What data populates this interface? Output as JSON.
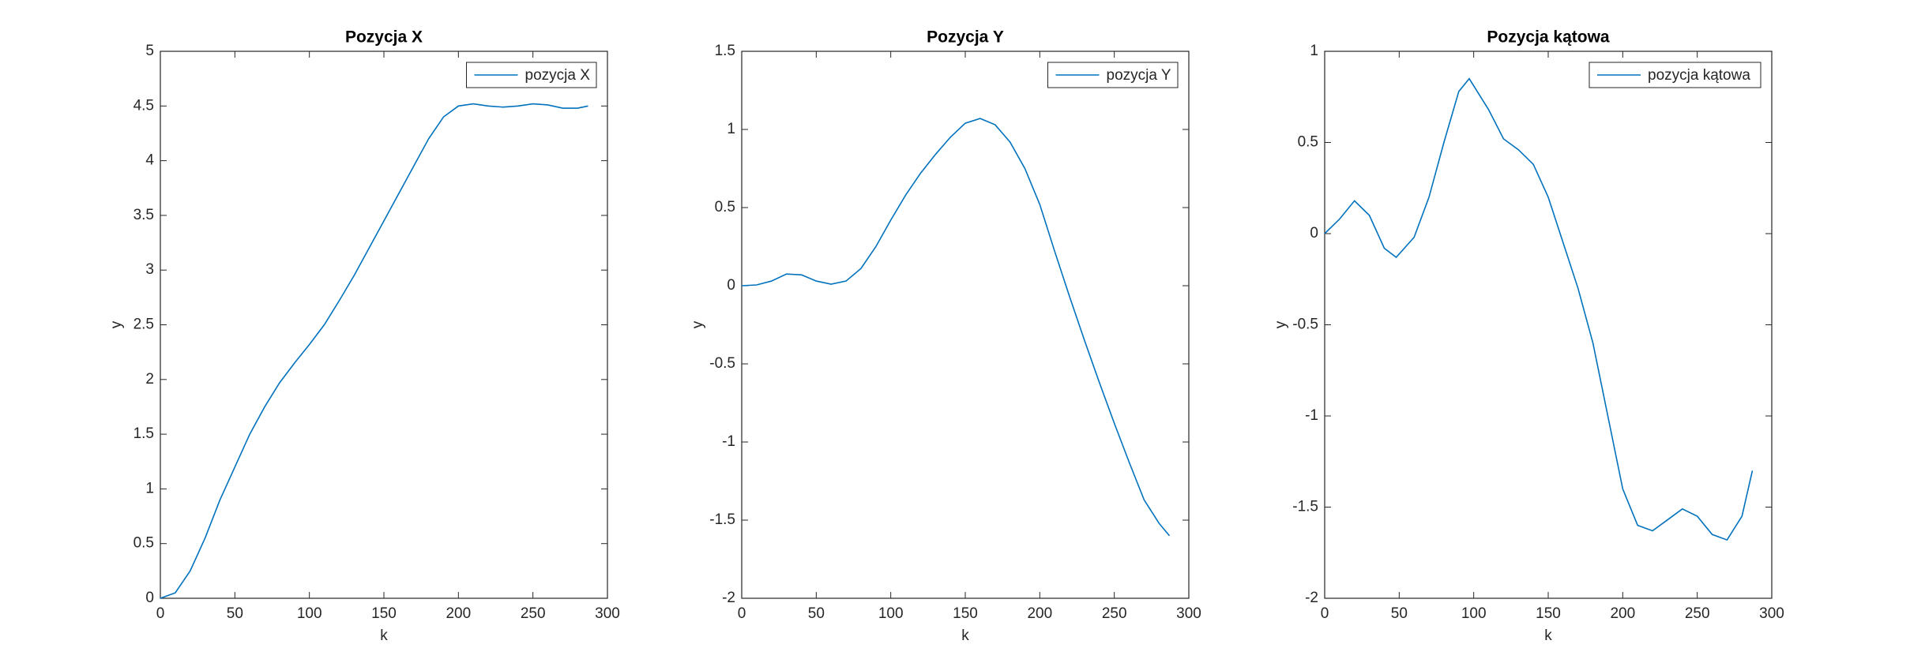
{
  "chart_data": [
    {
      "type": "line",
      "title": "Pozycja X",
      "x_label": "k",
      "y_label": "y",
      "x": [
        0,
        10,
        20,
        30,
        40,
        50,
        60,
        70,
        80,
        90,
        100,
        110,
        120,
        130,
        140,
        150,
        160,
        170,
        180,
        190,
        200,
        210,
        220,
        230,
        240,
        250,
        260,
        270,
        280,
        287
      ],
      "series": [
        {
          "name": "pozycja X",
          "color": "#0072bd",
          "values": [
            0,
            0.05,
            0.25,
            0.55,
            0.9,
            1.2,
            1.5,
            1.75,
            1.97,
            2.15,
            2.32,
            2.5,
            2.72,
            2.95,
            3.2,
            3.45,
            3.7,
            3.95,
            4.2,
            4.4,
            4.5,
            4.52,
            4.5,
            4.49,
            4.5,
            4.52,
            4.51,
            4.48,
            4.48,
            4.5
          ]
        }
      ],
      "xlim": [
        0,
        300
      ],
      "xticks": [
        0,
        50,
        100,
        150,
        200,
        250,
        300
      ],
      "ylim": [
        0,
        5
      ],
      "yticks": [
        0,
        0.5,
        1,
        1.5,
        2,
        2.5,
        3,
        3.5,
        4,
        4.5,
        5
      ],
      "legend": "upper right"
    },
    {
      "type": "line",
      "title": "Pozycja Y",
      "x_label": "k",
      "y_label": "y",
      "x": [
        0,
        10,
        20,
        30,
        40,
        50,
        60,
        70,
        80,
        90,
        100,
        110,
        120,
        130,
        140,
        150,
        160,
        170,
        180,
        190,
        200,
        210,
        220,
        230,
        240,
        250,
        260,
        270,
        280,
        287
      ],
      "series": [
        {
          "name": "pozycja Y",
          "color": "#0072bd",
          "values": [
            0,
            0.005,
            0.03,
            0.075,
            0.07,
            0.03,
            0.01,
            0.03,
            0.11,
            0.25,
            0.42,
            0.58,
            0.72,
            0.84,
            0.95,
            1.04,
            1.07,
            1.03,
            0.92,
            0.75,
            0.52,
            0.22,
            -0.07,
            -0.35,
            -0.62,
            -0.88,
            -1.13,
            -1.37,
            -1.52,
            -1.6
          ]
        }
      ],
      "xlim": [
        0,
        300
      ],
      "xticks": [
        0,
        50,
        100,
        150,
        200,
        250,
        300
      ],
      "ylim": [
        -2,
        1.5
      ],
      "yticks": [
        -2,
        -1.5,
        -1,
        -0.5,
        0,
        0.5,
        1,
        1.5
      ],
      "legend": "upper right"
    },
    {
      "type": "line",
      "title": "Pozycja kątowa",
      "x_label": "k",
      "y_label": "y",
      "x": [
        0,
        10,
        20,
        30,
        40,
        48,
        60,
        70,
        80,
        90,
        97,
        110,
        120,
        130,
        140,
        150,
        160,
        170,
        180,
        190,
        200,
        210,
        220,
        230,
        240,
        250,
        260,
        270,
        280,
        287
      ],
      "series": [
        {
          "name": "pozycja kątowa",
          "color": "#0072bd",
          "values": [
            0,
            0.08,
            0.18,
            0.1,
            -0.08,
            -0.13,
            -0.02,
            0.2,
            0.5,
            0.78,
            0.85,
            0.68,
            0.52,
            0.46,
            0.38,
            0.2,
            -0.05,
            -0.3,
            -0.6,
            -1.0,
            -1.4,
            -1.6,
            -1.63,
            -1.57,
            -1.51,
            -1.55,
            -1.65,
            -1.68,
            -1.55,
            -1.3
          ]
        }
      ],
      "xlim": [
        0,
        300
      ],
      "xticks": [
        0,
        50,
        100,
        150,
        200,
        250,
        300
      ],
      "ylim": [
        -2,
        1
      ],
      "yticks": [
        -2,
        -1.5,
        -1,
        -0.5,
        0,
        0.5,
        1
      ],
      "legend": "upper right"
    }
  ]
}
